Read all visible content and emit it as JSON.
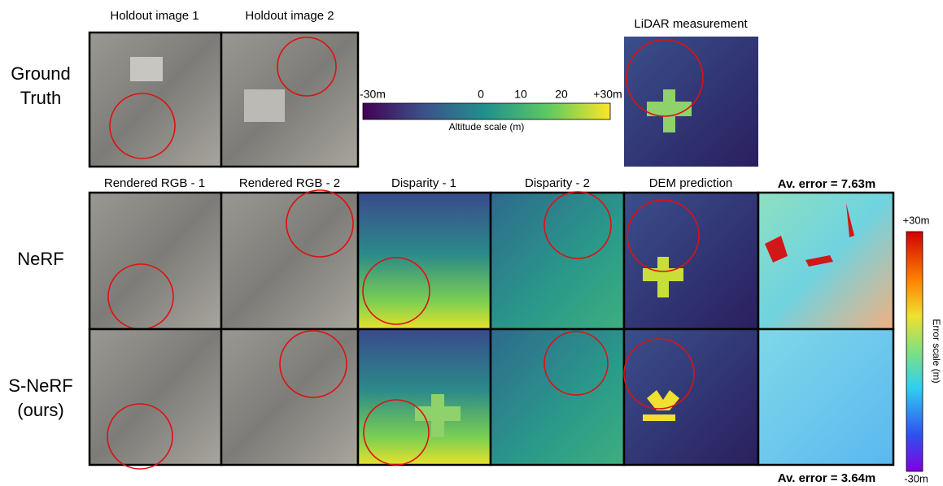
{
  "top_row": {
    "label_lines": [
      "Ground",
      "Truth"
    ],
    "holdout_titles": [
      "Holdout image 1",
      "Holdout image 2"
    ],
    "lidar_title": "LiDAR measurement"
  },
  "altitude_scale": {
    "tick_labels": [
      "-30m",
      "0",
      "10",
      "20",
      "+30m"
    ],
    "title": "Altitude scale (m)"
  },
  "column_titles": [
    "Rendered RGB - 1",
    "Rendered RGB - 2",
    "Disparity - 1",
    "Disparity - 2",
    "DEM prediction"
  ],
  "rows": [
    {
      "label_lines": [
        "NeRF"
      ],
      "error": "Av. error = 7.63m"
    },
    {
      "label_lines": [
        "S-NeRF",
        "(ours)"
      ],
      "error": "Av. error = 3.64m"
    }
  ],
  "error_scale": {
    "max_label": "+30m",
    "title": "Error scale (m)",
    "min_label": "-30m"
  }
}
